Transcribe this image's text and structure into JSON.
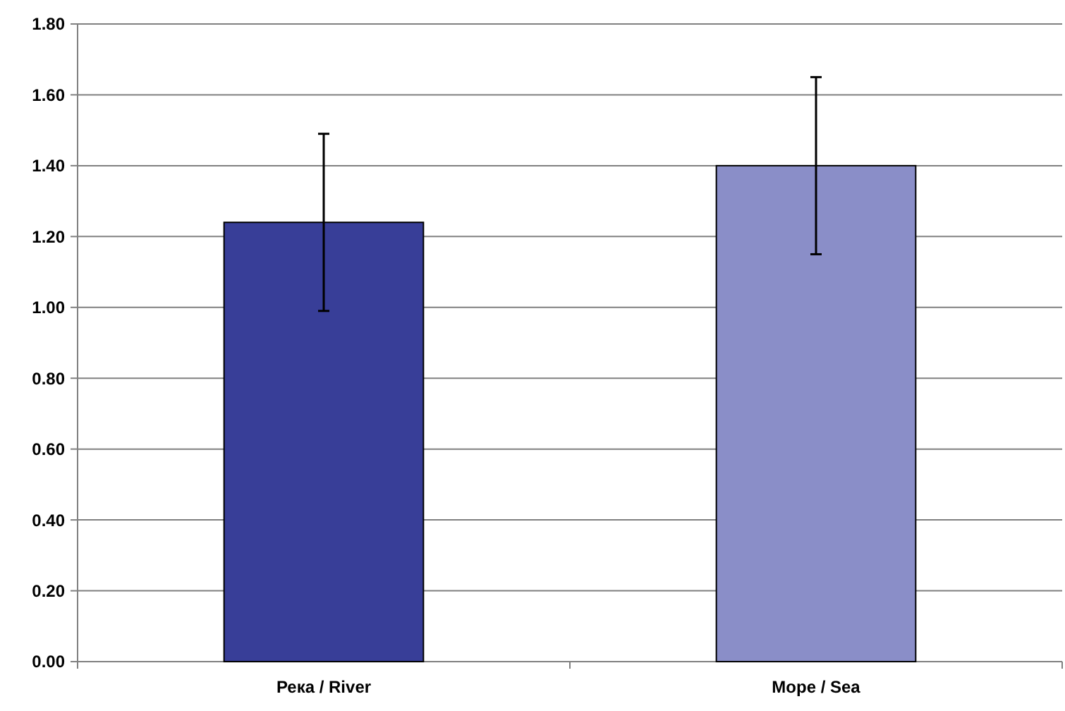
{
  "chart_data": {
    "type": "bar",
    "categories": [
      "Река / River",
      "Море / Sea"
    ],
    "values": [
      1.24,
      1.4
    ],
    "colors": [
      "#383e98",
      "#8a8ec8"
    ],
    "errors": [
      0.25,
      0.25
    ],
    "ylim": [
      0,
      1.8
    ],
    "yticks": [
      {
        "value": 0,
        "label": "0.00"
      },
      {
        "value": 0.2,
        "label": "0.20"
      },
      {
        "value": 0.4,
        "label": "0.40"
      },
      {
        "value": 0.6,
        "label": "0.60"
      },
      {
        "value": 0.8,
        "label": "0.80"
      },
      {
        "value": 1,
        "label": "1.00"
      },
      {
        "value": 1.2,
        "label": "1.20"
      },
      {
        "value": 1.4,
        "label": "1.40"
      },
      {
        "value": 1.6,
        "label": "1.60"
      },
      {
        "value": 1.8,
        "label": "1.80"
      }
    ],
    "grid": "y"
  }
}
